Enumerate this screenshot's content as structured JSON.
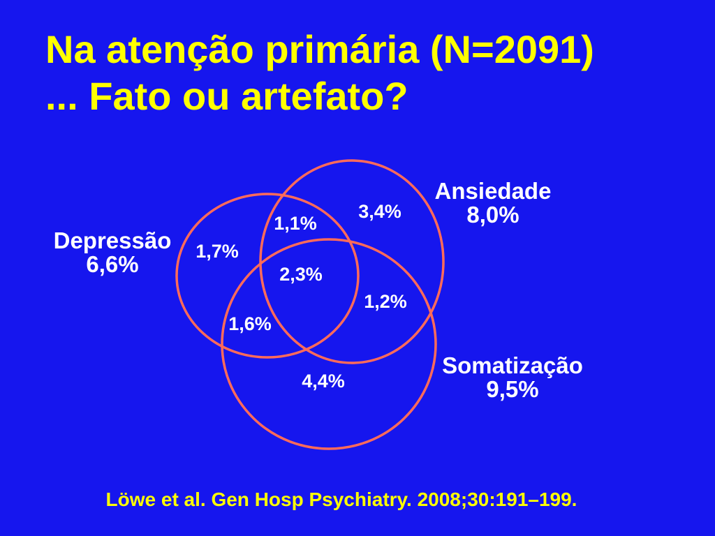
{
  "slide": {
    "title_line1": "Na atenção primária (N=2091)",
    "title_line2": "... Fato ou artefato?",
    "citation": "Löwe et al. Gen Hosp Psychiatry. 2008;30:191–199."
  },
  "venn": {
    "sets": {
      "depressao": {
        "name": "Depressão",
        "value": "6,6%"
      },
      "ansiedade": {
        "name": "Ansiedade",
        "value": "8,0%"
      },
      "somatizacao": {
        "name": "Somatização",
        "value": "9,5%"
      }
    },
    "regions": {
      "depressao_only": "1,7%",
      "ansiedade_only": "3,4%",
      "somatizacao_only": "4,4%",
      "depressao_ansiedade": "1,1%",
      "depressao_somatizacao": "1,6%",
      "ansiedade_somatizacao": "1,2%",
      "all_three": "2,3%"
    }
  },
  "colors": {
    "background": "#1616ee",
    "title": "#ffff00",
    "text": "#ffffff",
    "circle_stroke": "#ff6b5a"
  }
}
